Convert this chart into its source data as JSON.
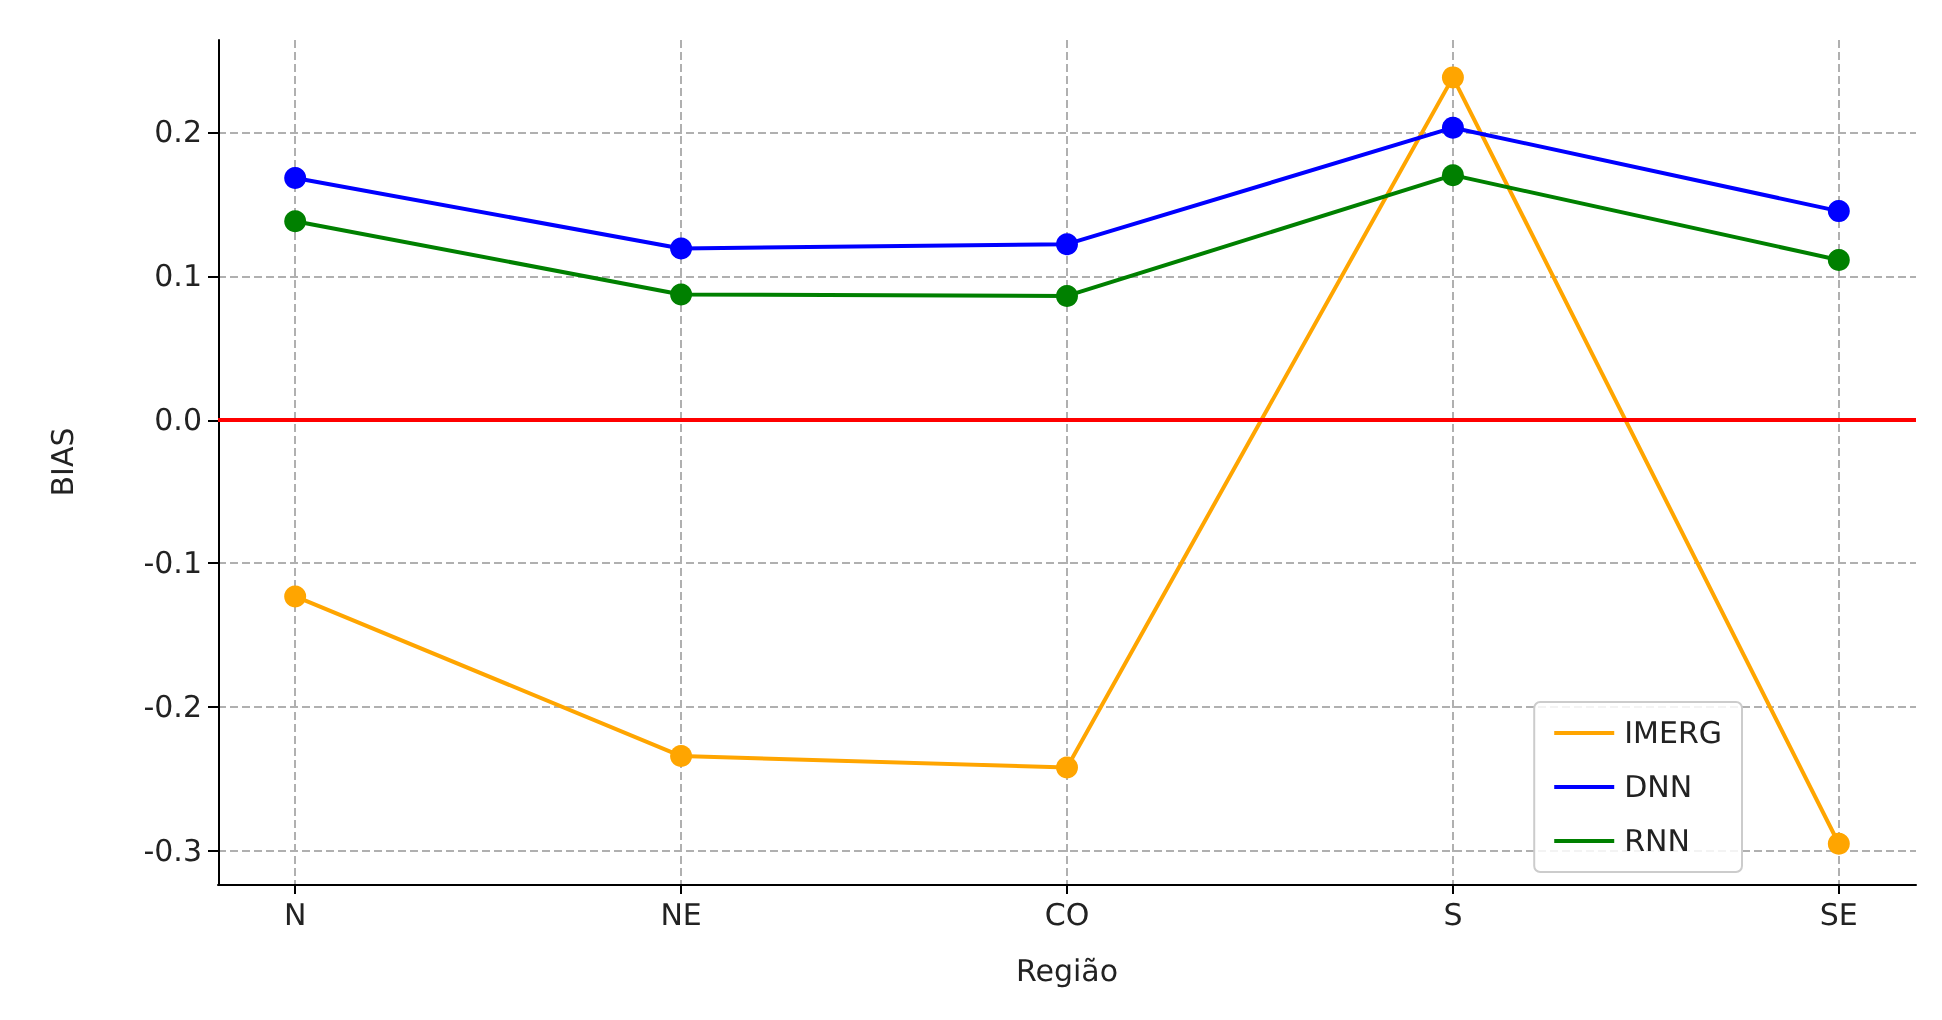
{
  "chart_data": {
    "type": "line",
    "xlabel": "Região",
    "ylabel": "BIAS",
    "categories": [
      "N",
      "NE",
      "CO",
      "S",
      "SE"
    ],
    "series": [
      {
        "name": "IMERG",
        "color": "#ffa500",
        "values": [
          -0.123,
          -0.234,
          -0.242,
          0.238,
          -0.295
        ]
      },
      {
        "name": "DNN",
        "color": "#0000ff",
        "values": [
          0.168,
          0.119,
          0.122,
          0.203,
          0.145
        ]
      },
      {
        "name": "RNN",
        "color": "#008000",
        "values": [
          0.138,
          0.087,
          0.086,
          0.17,
          0.111
        ]
      }
    ],
    "ylim": [
      -0.323,
      0.264
    ],
    "yticks": [
      -0.3,
      -0.2,
      -0.1,
      {
        "value": 0,
        "label": "0.0"
      },
      0.1,
      0.2
    ],
    "ref_lines": [
      {
        "axis": "y",
        "value": 0,
        "color": "#ff0000",
        "line_style": "solid"
      }
    ],
    "grid": true,
    "legend": "bottom right",
    "marker": "circle",
    "line_style": "solid"
  }
}
